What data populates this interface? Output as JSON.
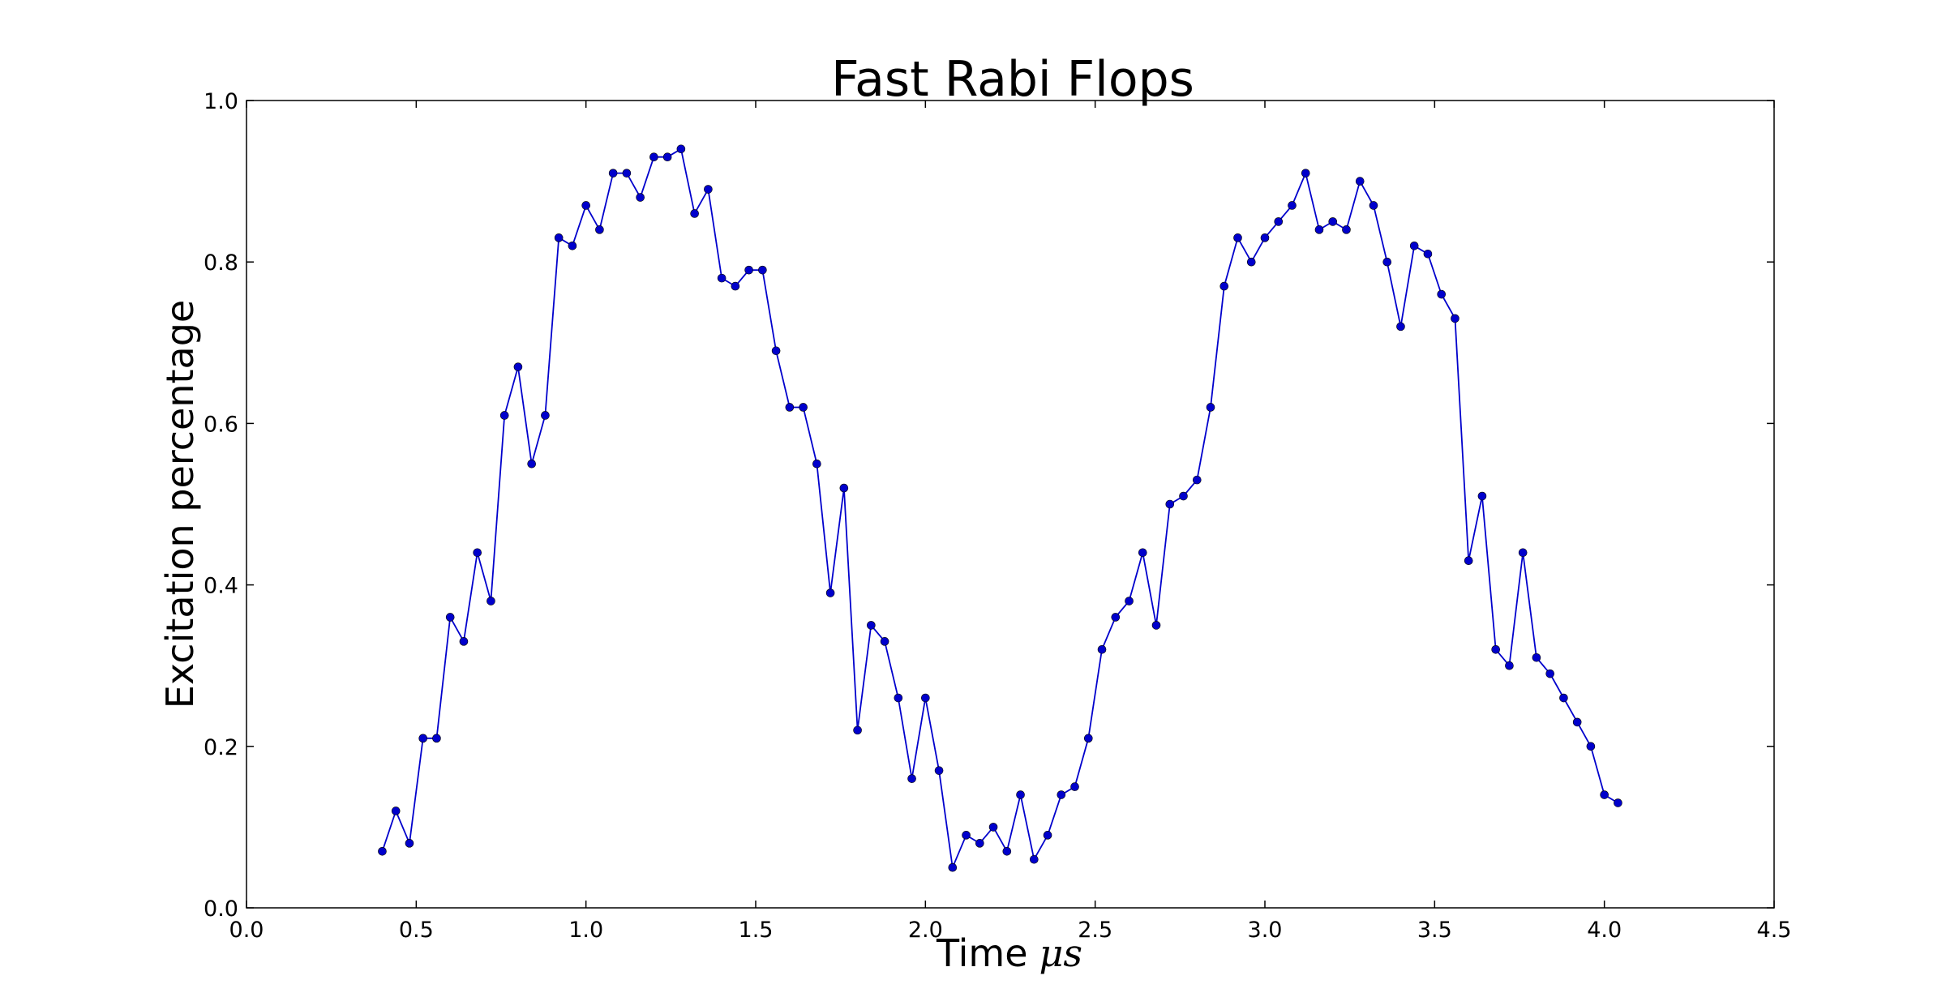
{
  "chart_data": {
    "type": "line",
    "title": "Fast Rabi Flops",
    "xlabel": "Time",
    "xlabel_unit": "μs",
    "ylabel": "Excitation percentage",
    "xlim": [
      0.0,
      4.5
    ],
    "ylim": [
      0.0,
      1.0
    ],
    "xticks": [
      "0.0",
      "0.5",
      "1.0",
      "1.5",
      "2.0",
      "2.5",
      "3.0",
      "3.5",
      "4.0",
      "4.5"
    ],
    "yticks": [
      "0.0",
      "0.2",
      "0.4",
      "0.6",
      "0.8",
      "1.0"
    ],
    "grid": false,
    "color": "#0000cc",
    "series": [
      {
        "x": [
          0.4,
          0.44,
          0.48,
          0.52,
          0.56,
          0.6,
          0.64,
          0.68,
          0.72,
          0.76,
          0.8,
          0.84,
          0.88,
          0.92,
          0.96,
          1.0,
          1.04,
          1.08,
          1.12,
          1.16,
          1.2,
          1.24,
          1.28,
          1.32,
          1.36,
          1.4,
          1.44,
          1.48,
          1.52,
          1.56,
          1.6,
          1.64,
          1.68,
          1.72,
          1.76,
          1.8,
          1.84,
          1.88,
          1.92,
          1.96,
          2.0,
          2.04,
          2.08,
          2.12,
          2.16,
          2.2,
          2.24,
          2.28,
          2.32,
          2.36,
          2.4,
          2.44,
          2.48,
          2.52,
          2.56,
          2.6,
          2.64,
          2.68,
          2.72,
          2.76,
          2.8,
          2.84,
          2.88,
          2.92,
          2.96,
          3.0,
          3.04,
          3.08,
          3.12,
          3.16,
          3.2,
          3.24,
          3.28,
          3.32,
          3.36,
          3.4,
          3.44,
          3.48,
          3.52,
          3.56,
          3.6,
          3.64,
          3.68,
          3.72,
          3.76,
          3.8,
          3.84,
          3.88,
          3.92,
          3.96,
          4.0,
          4.04
        ],
        "y": [
          0.07,
          0.12,
          0.08,
          0.21,
          0.21,
          0.36,
          0.33,
          0.44,
          0.38,
          0.61,
          0.67,
          0.55,
          0.61,
          0.83,
          0.82,
          0.87,
          0.84,
          0.91,
          0.91,
          0.88,
          0.93,
          0.93,
          0.94,
          0.86,
          0.89,
          0.78,
          0.77,
          0.79,
          0.79,
          0.69,
          0.62,
          0.62,
          0.55,
          0.39,
          0.52,
          0.22,
          0.35,
          0.33,
          0.26,
          0.16,
          0.26,
          0.17,
          0.05,
          0.09,
          0.08,
          0.1,
          0.07,
          0.14,
          0.06,
          0.09,
          0.14,
          0.15,
          0.21,
          0.32,
          0.36,
          0.38,
          0.44,
          0.35,
          0.5,
          0.51,
          0.53,
          0.62,
          0.77,
          0.83,
          0.8,
          0.83,
          0.85,
          0.87,
          0.91,
          0.84,
          0.85,
          0.84,
          0.9,
          0.87,
          0.8,
          0.72,
          0.82,
          0.81,
          0.76,
          0.73,
          0.43,
          0.51,
          0.32,
          0.3,
          0.44,
          0.31,
          0.29,
          0.26,
          0.23,
          0.2,
          0.14,
          0.13
        ]
      }
    ]
  }
}
